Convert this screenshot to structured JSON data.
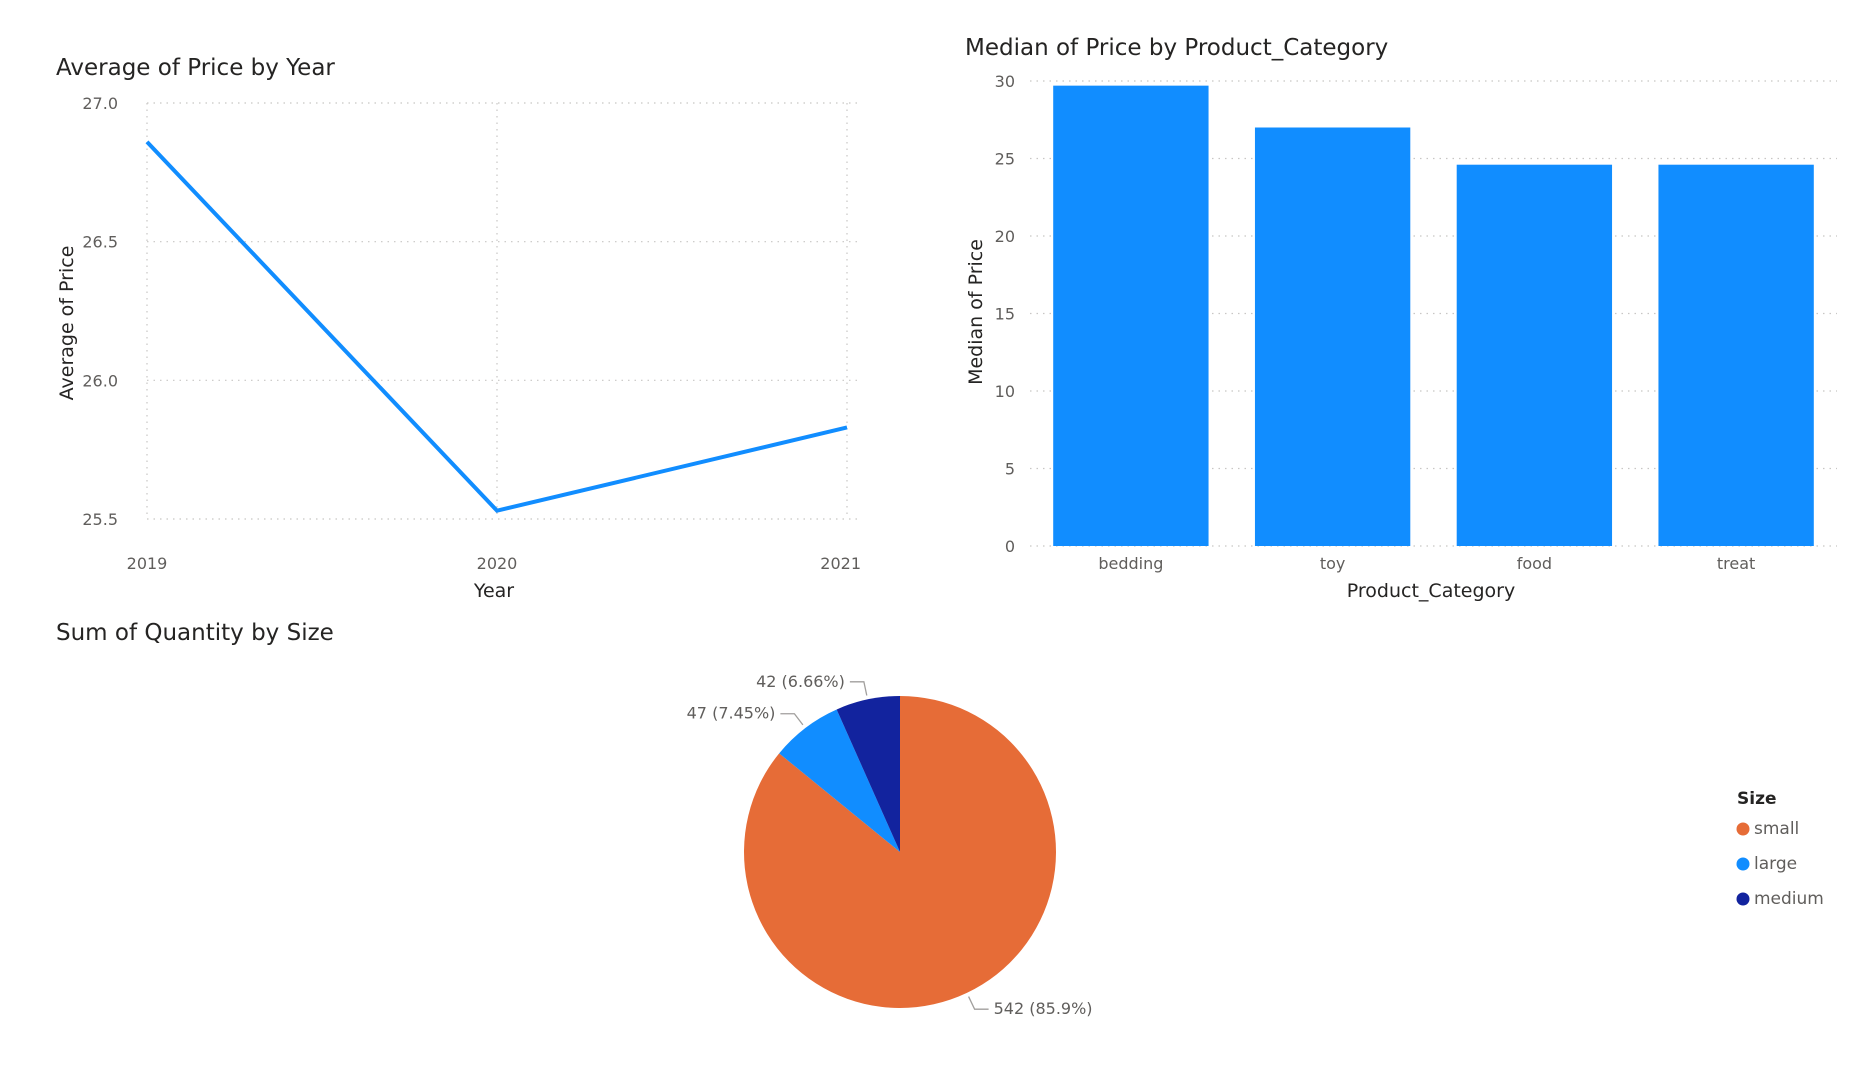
{
  "chart_data": [
    {
      "type": "line",
      "title": "Average of Price by Year",
      "xlabel": "Year",
      "ylabel": "Average of Price",
      "x": [
        "2019",
        "2020",
        "2021"
      ],
      "series": [
        {
          "values": [
            26.86,
            25.53,
            25.83
          ]
        }
      ],
      "ylim": [
        25.5,
        27.0
      ],
      "yticks": [
        "25.5",
        "26.0",
        "26.5",
        "27.0"
      ],
      "ytick_values": [
        25.5,
        26.0,
        26.5,
        27.0
      ],
      "grid": true,
      "colors": {
        "line": "#118DFF",
        "grid": "#C8C6C4",
        "text": "#252423",
        "tick": "#605E5C"
      }
    },
    {
      "type": "bar",
      "title": "Median of Price by Product_Category",
      "xlabel": "Product_Category",
      "ylabel": "Median of Price",
      "categories": [
        "bedding",
        "toy",
        "food",
        "treat"
      ],
      "values": [
        29.7,
        27.0,
        24.6,
        24.6
      ],
      "ylim": [
        0,
        30
      ],
      "yticks": [
        "0",
        "5",
        "10",
        "15",
        "20",
        "25",
        "30"
      ],
      "ytick_values": [
        0,
        5,
        10,
        15,
        20,
        25,
        30
      ],
      "grid": true,
      "colors": {
        "bar": "#118DFF",
        "grid": "#C8C6C4",
        "text": "#252423",
        "tick": "#605E5C"
      }
    },
    {
      "type": "pie",
      "title": "Sum of Quantity by Size",
      "legend_title": "Size",
      "legend_position": "right",
      "slices": [
        {
          "label": "small",
          "value": 542,
          "data_label": "542 (85.9%)",
          "color": "#E66C37"
        },
        {
          "label": "large",
          "value": 47,
          "data_label": "47 (7.45%)",
          "color": "#118DFF"
        },
        {
          "label": "medium",
          "value": 42,
          "data_label": "42 (6.66%)",
          "color": "#12239E"
        }
      ]
    }
  ]
}
